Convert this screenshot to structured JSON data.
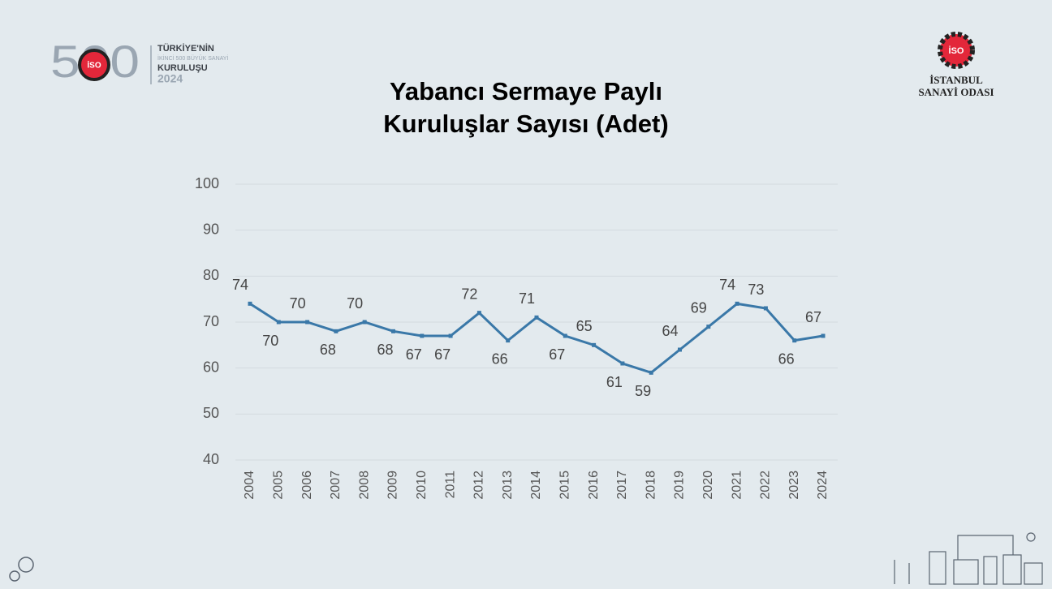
{
  "chart_data": {
    "type": "line",
    "title": [
      "Yabancı Sermaye Paylı",
      "Kuruluşlar Sayısı (Adet)"
    ],
    "x": [
      "2004",
      "2005",
      "2006",
      "2007",
      "2008",
      "2009",
      "2010",
      "2011",
      "2012",
      "2013",
      "2014",
      "2015",
      "2016",
      "2017",
      "2018",
      "2019",
      "2020",
      "2021",
      "2022",
      "2023",
      "2024"
    ],
    "series": [
      {
        "color": "#3a78a8",
        "values": [
          74,
          70,
          70,
          68,
          70,
          68,
          67,
          67,
          72,
          66,
          71,
          67,
          65,
          61,
          59,
          64,
          69,
          74,
          73,
          66,
          67
        ]
      }
    ],
    "ylim": [
      40,
      100
    ],
    "yticks": [
      40,
      50,
      60,
      70,
      80,
      90,
      100
    ],
    "grid": true
  },
  "logos": {
    "left": {
      "number": "500",
      "badge": "İSO",
      "line1": "TÜRKİYE'NİN",
      "line2": "İKİNCİ 500 BÜYÜK SANAYİ",
      "line3": "KURULUŞU",
      "year": "2024"
    },
    "right": {
      "badge": "İSO",
      "line1": "İSTANBUL",
      "line2": "SANAYİ ODASI"
    }
  }
}
